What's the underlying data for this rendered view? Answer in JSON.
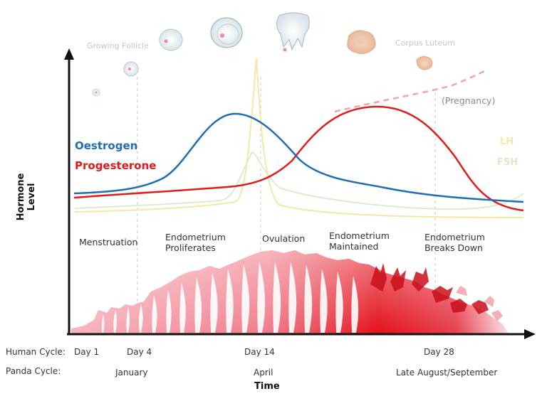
{
  "axes": {
    "y_label": "Hormone Level",
    "x_label": "Time"
  },
  "legend": {
    "oestrogen": {
      "label": "Oestrogen",
      "color": "#1f6db3"
    },
    "progesterone": {
      "label": "Progesterone",
      "color": "#e01b1b"
    },
    "lh": {
      "label": "LH",
      "color": "#f7e6a6"
    },
    "fsh": {
      "label": "FSH",
      "color": "#d9ecc4"
    }
  },
  "annotations": {
    "growing_follicle": "Growing Follicle",
    "corpus_luteum": "Corpus Luteum",
    "pregnancy": "(Pregnancy)"
  },
  "phases": [
    {
      "label": "Menstruation"
    },
    {
      "label": "Endometrium Proliferates"
    },
    {
      "label": "Ovulation"
    },
    {
      "label": "Endometrium Maintained"
    },
    {
      "label": "Endometrium Breaks Down"
    }
  ],
  "timeline": {
    "human_label": "Human Cycle:",
    "human_ticks": [
      "Day 1",
      "Day 4",
      "Day 14",
      "Day 28"
    ],
    "panda_label": "Panda Cycle:",
    "panda_ticks": [
      "January",
      "April",
      "Late August/September"
    ]
  }
}
